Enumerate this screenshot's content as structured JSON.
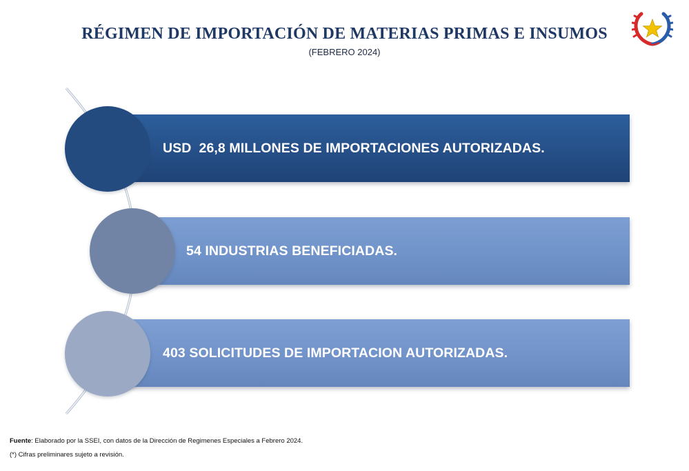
{
  "header": {
    "title": "RÉGIMEN DE IMPORTACIÓN DE MATERIAS PRIMAS E INSUMOS",
    "subtitle": "(FEBRERO 2024)"
  },
  "emblem": {
    "icon": "national-coat-of-arms-icon",
    "star_color": "#f2c200",
    "left_branch_color": "#d62b2b",
    "right_branch_color": "#2a5caa"
  },
  "items": [
    {
      "text": "USD  26,8 MILLONES DE IMPORTACIONES AUTORIZADAS.",
      "bar_color": "#254e86",
      "circle_color": "#244b7f"
    },
    {
      "text": "54 INDUSTRIAS BENEFICIADAS.",
      "bar_color": "#6f92c8",
      "circle_color": "#7284a5"
    },
    {
      "text": "403 SOLICITUDES DE IMPORTACION AUTORIZADAS.",
      "bar_color": "#7092c8",
      "circle_color": "#9ba9c4"
    }
  ],
  "footer": {
    "source_label": "Fuente",
    "source_text": ": Elaborado por la SSEI, con datos de la Dirección de Regimenes Especiales a Febrero 2024.",
    "note": "(*) Cifras preliminares sujeto a revisión."
  }
}
